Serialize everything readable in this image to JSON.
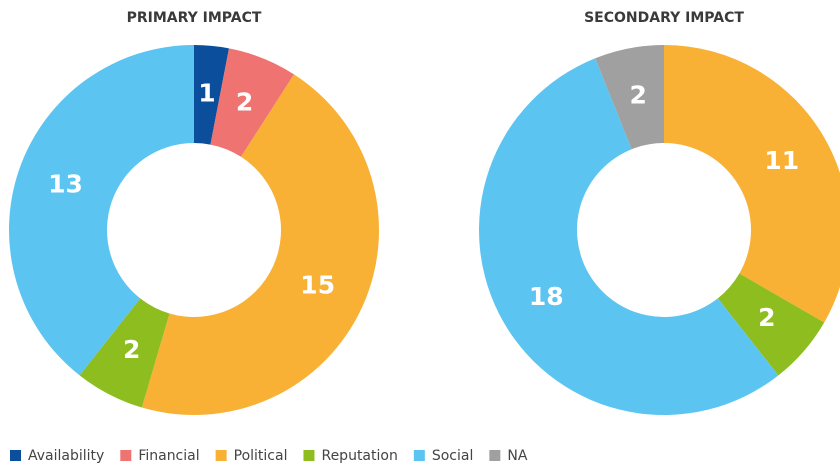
{
  "chart_data": [
    {
      "type": "donut",
      "title": "PRIMARY IMPACT",
      "categories": [
        "Availability",
        "Financial",
        "Political",
        "Reputation",
        "Social"
      ],
      "values": [
        1,
        2,
        15,
        2,
        13
      ],
      "colors": [
        "#0b4f9c",
        "#ef7370",
        "#f8b134",
        "#8dbd1f",
        "#5cc4f0"
      ]
    },
    {
      "type": "donut",
      "title": "SECONDARY IMPACT",
      "categories": [
        "Political",
        "Reputation",
        "Social",
        "NA"
      ],
      "values": [
        11,
        2,
        18,
        2
      ],
      "colors": [
        "#f8b134",
        "#8dbd1f",
        "#5cc4f0",
        "#a0a0a0"
      ]
    }
  ],
  "legend": [
    {
      "name": "Availability",
      "color": "#0b4f9c"
    },
    {
      "name": "Financial",
      "color": "#ef7370"
    },
    {
      "name": "Political",
      "color": "#f8b134"
    },
    {
      "name": "Reputation",
      "color": "#8dbd1f"
    },
    {
      "name": "Social",
      "color": "#5cc4f0"
    },
    {
      "name": "NA",
      "color": "#a0a0a0"
    }
  ]
}
